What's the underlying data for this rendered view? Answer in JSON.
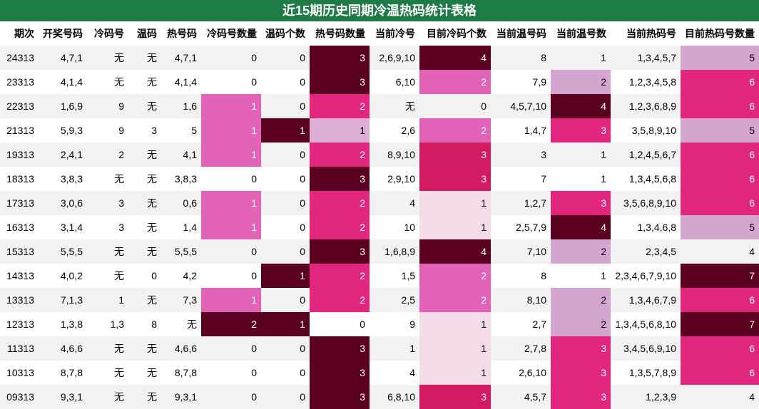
{
  "title": "近15期历史同期冷温热码统计表格",
  "headers": [
    "期次",
    "开奖号码",
    "冷码号",
    "温码",
    "热号码",
    "冷码号数量",
    "温码个数",
    "热号码数量",
    "当前冷号",
    "目前冷码个数",
    "当前温号码",
    "当前温号数",
    "当前热码号",
    "目前热码号数量"
  ],
  "rows": [
    [
      "24313",
      "4,7,1",
      "无",
      "无",
      "4,7,1",
      "0",
      "0",
      "3",
      "2,6,9,10",
      "4",
      "8",
      "1",
      "1,3,4,5,7",
      "5"
    ],
    [
      "23313",
      "4,1,4",
      "无",
      "无",
      "4,1,4",
      "0",
      "0",
      "3",
      "6,10",
      "2",
      "7,9",
      "2",
      "1,2,3,4,5,8",
      "6"
    ],
    [
      "22313",
      "1,6,9",
      "9",
      "无",
      "1,6",
      "1",
      "0",
      "2",
      "无",
      "0",
      "4,5,7,10",
      "4",
      "1,2,3,6,8,9",
      "6"
    ],
    [
      "21313",
      "5,9,3",
      "9",
      "3",
      "5",
      "1",
      "1",
      "1",
      "2,6",
      "2",
      "1,4,7",
      "3",
      "3,5,8,9,10",
      "5"
    ],
    [
      "19313",
      "2,4,1",
      "2",
      "无",
      "4,1",
      "1",
      "0",
      "2",
      "8,9,10",
      "3",
      "3",
      "1",
      "1,2,4,5,6,7",
      "6"
    ],
    [
      "18313",
      "3,8,3",
      "无",
      "无",
      "3,8,3",
      "0",
      "0",
      "3",
      "2,9,10",
      "3",
      "7",
      "1",
      "1,3,4,5,6,8",
      "6"
    ],
    [
      "17313",
      "3,0,6",
      "3",
      "无",
      "0,6",
      "1",
      "0",
      "2",
      "4",
      "1",
      "1,2,7",
      "3",
      "3,5,6,8,9,10",
      "6"
    ],
    [
      "16313",
      "3,1,4",
      "3",
      "无",
      "1,4",
      "1",
      "0",
      "2",
      "10",
      "1",
      "2,5,7,9",
      "4",
      "1,3,4,6,8",
      "5"
    ],
    [
      "15313",
      "5,5,5",
      "无",
      "无",
      "5,5,5",
      "0",
      "0",
      "3",
      "1,6,8,9",
      "4",
      "7,10",
      "2",
      "2,3,4,5",
      "4"
    ],
    [
      "14313",
      "4,0,2",
      "无",
      "0",
      "4,2",
      "0",
      "1",
      "2",
      "1,5",
      "2",
      "8",
      "1",
      "2,3,4,6,7,9,10",
      "7"
    ],
    [
      "13313",
      "7,1,3",
      "1",
      "无",
      "7,3",
      "1",
      "0",
      "2",
      "2,5",
      "2",
      "8,10",
      "2",
      "1,3,4,6,7,9",
      "6"
    ],
    [
      "12313",
      "1,3,8",
      "1,3",
      "8",
      "无",
      "2",
      "1",
      "0",
      "9",
      "1",
      "2,7",
      "2",
      "1,3,4,5,6,8,10",
      "7"
    ],
    [
      "11313",
      "4,6,6",
      "无",
      "无",
      "4,6,6",
      "0",
      "0",
      "3",
      "1",
      "1",
      "2,7,8",
      "3",
      "3,4,5,6,9,10",
      "6"
    ],
    [
      "10313",
      "8,7,8",
      "无",
      "无",
      "8,7,8",
      "0",
      "0",
      "3",
      "4",
      "1",
      "2,6,10",
      "3",
      "1,3,5,7,8,9",
      "6"
    ],
    [
      "09313",
      "9,3,1",
      "无",
      "无",
      "9,3,1",
      "0",
      "0",
      "3",
      "6,8,10",
      "3",
      "4,5,7",
      "3",
      "1,2,3,9",
      "4"
    ]
  ]
}
